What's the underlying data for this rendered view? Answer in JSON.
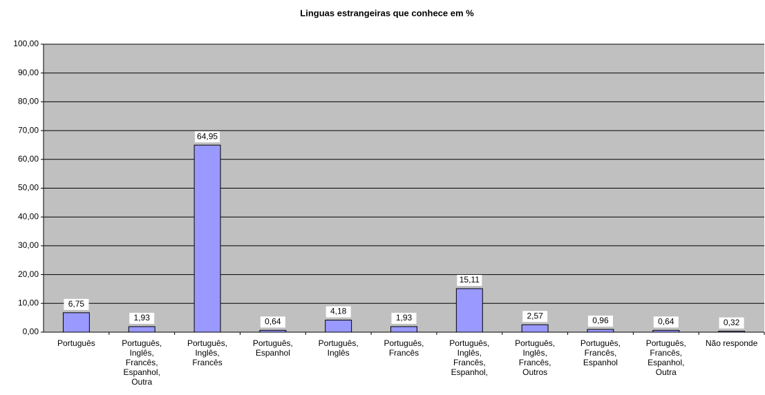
{
  "chart_data": {
    "type": "bar",
    "title": "Linguas estrangeiras que conhece em %",
    "categories": [
      "Português",
      "Português, Inglês, Francês, Espanhol, Outra",
      "Português, Inglês, Francês",
      "Português, Espanhol",
      "Português, Inglês",
      "Português, Francês",
      "Português, Inglês, Francês, Espanhol,",
      "Português, Inglês, Francês, Outros",
      "Português, Francês, Espanhol",
      "Português, Francês, Espanhol, Outra",
      "Não responde"
    ],
    "values": [
      6.75,
      1.93,
      64.95,
      0.64,
      4.18,
      1.93,
      15.11,
      2.57,
      0.96,
      0.64,
      0.32
    ],
    "value_labels": [
      "6,75",
      "1,93",
      "64,95",
      "0,64",
      "4,18",
      "1,93",
      "15,11",
      "2,57",
      "0,96",
      "0,64",
      "0,32"
    ],
    "color": "#9999ff",
    "ylim": [
      0,
      100
    ],
    "yticks": [
      {
        "value": 0,
        "label": "0,00"
      },
      {
        "value": 10,
        "label": "10,00"
      },
      {
        "value": 20,
        "label": "20,00"
      },
      {
        "value": 30,
        "label": "30,00"
      },
      {
        "value": 40,
        "label": "40,00"
      },
      {
        "value": 50,
        "label": "50,00"
      },
      {
        "value": 60,
        "label": "60,00"
      },
      {
        "value": 70,
        "label": "70,00"
      },
      {
        "value": 80,
        "label": "80,00"
      },
      {
        "value": 90,
        "label": "90,00"
      },
      {
        "value": 100,
        "label": "100,00"
      }
    ],
    "grid": true
  }
}
